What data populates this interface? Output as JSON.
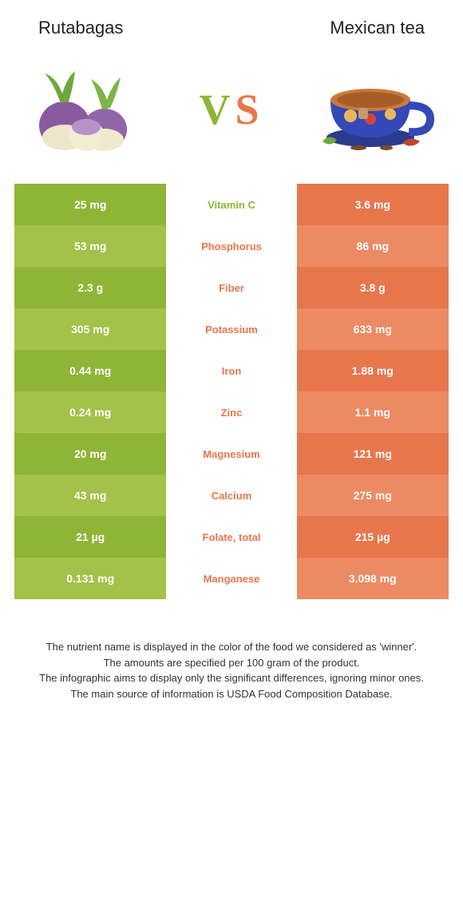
{
  "header": {
    "left_title": "Rutabagas",
    "right_title": "Mexican tea"
  },
  "vs": {
    "v": "V",
    "s": "S"
  },
  "colors": {
    "left_a": "#8fb536",
    "left_b": "#a2c249",
    "right_a": "#e8764d",
    "right_b": "#ec8a63",
    "winner_left": "#8fb536",
    "winner_right": "#e8764d"
  },
  "table": {
    "rows": [
      {
        "left": "25 mg",
        "label": "Vitamin C",
        "right": "3.6 mg",
        "winner": "left"
      },
      {
        "left": "53 mg",
        "label": "Phosphorus",
        "right": "86 mg",
        "winner": "right"
      },
      {
        "left": "2.3 g",
        "label": "Fiber",
        "right": "3.8 g",
        "winner": "right"
      },
      {
        "left": "305 mg",
        "label": "Potassium",
        "right": "633 mg",
        "winner": "right"
      },
      {
        "left": "0.44 mg",
        "label": "Iron",
        "right": "1.88 mg",
        "winner": "right"
      },
      {
        "left": "0.24 mg",
        "label": "Zinc",
        "right": "1.1 mg",
        "winner": "right"
      },
      {
        "left": "20 mg",
        "label": "Magnesium",
        "right": "121 mg",
        "winner": "right"
      },
      {
        "left": "43 mg",
        "label": "Calcium",
        "right": "275 mg",
        "winner": "right"
      },
      {
        "left": "21 µg",
        "label": "Folate, total",
        "right": "215 µg",
        "winner": "right"
      },
      {
        "left": "0.131 mg",
        "label": "Manganese",
        "right": "3.098 mg",
        "winner": "right"
      }
    ]
  },
  "footer": {
    "line1": "The nutrient name is displayed in the color of the food we considered as 'winner'.",
    "line2": "The amounts are specified per 100 gram of the product.",
    "line3": "The infographic aims to display only the significant differences, ignoring minor ones.",
    "line4": "The main source of information is USDA Food Composition Database."
  }
}
